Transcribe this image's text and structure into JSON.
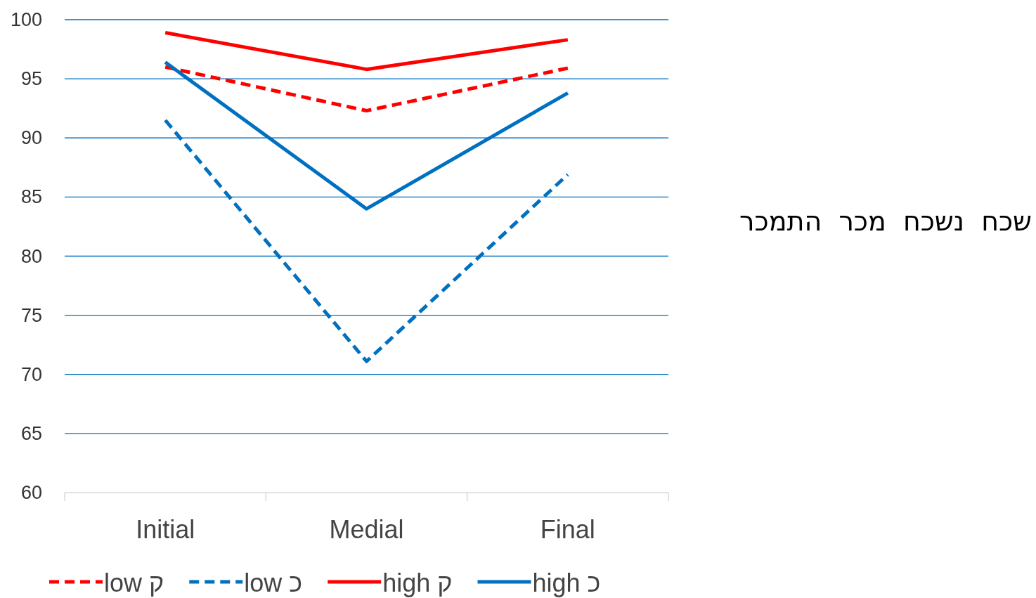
{
  "chart_data": {
    "type": "line",
    "categories": [
      "Initial",
      "Medial",
      "Final"
    ],
    "ylim": [
      60,
      100
    ],
    "yticks": [
      60,
      65,
      70,
      75,
      80,
      85,
      90,
      95,
      100
    ],
    "grid": "y",
    "legend": "bottom",
    "series": [
      {
        "name": "low ק",
        "color": "#ff0000",
        "line_style": "dashed",
        "values": [
          96.0,
          92.3,
          95.9
        ]
      },
      {
        "name": "low כ",
        "color": "#0070c0",
        "line_style": "dashed",
        "values": [
          91.5,
          71.1,
          86.9
        ]
      },
      {
        "name": "high ק",
        "color": "#ff0000",
        "line_style": "solid",
        "values": [
          98.9,
          95.8,
          98.3
        ]
      },
      {
        "name": "high כ",
        "color": "#0070c0",
        "line_style": "solid",
        "values": [
          96.4,
          84.0,
          93.8
        ]
      }
    ],
    "annotations": [
      "שכח  נשכח  מכר  התמכר"
    ]
  }
}
